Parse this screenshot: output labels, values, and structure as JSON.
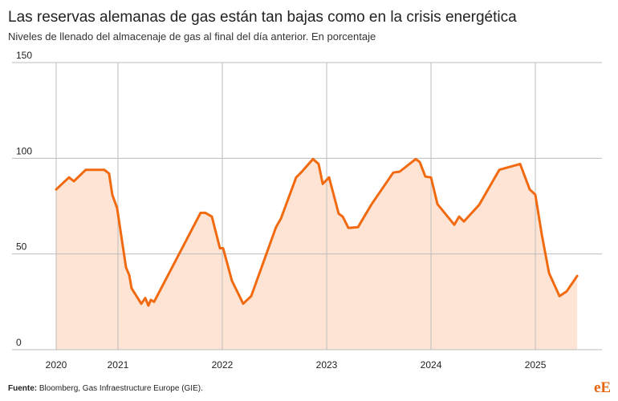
{
  "chart_data": {
    "type": "area",
    "title": "Las reservas alemanas de gas están tan bajas como en la crisis energética",
    "subtitle": "Niveles de llenado del almacenaje de gas al final del día anterior. En porcentaje",
    "source_label": "Fuente:",
    "source": "Bloomberg, Gas Infraestructure Europe (GIE).",
    "logo": "eE",
    "color": "#f26a10",
    "fill": "#fde4d4",
    "grid": true,
    "x": [
      2020.408,
      2020.531,
      2020.577,
      2020.692,
      2020.869,
      2020.915,
      2020.946,
      2020.992,
      2021.077,
      2021.108,
      2021.131,
      2021.223,
      2021.262,
      2021.292,
      2021.315,
      2021.346,
      2021.792,
      2021.838,
      2021.9,
      2021.977,
      2022.008,
      2022.092,
      2022.2,
      2022.277,
      2022.515,
      2022.562,
      2022.708,
      2022.754,
      2022.869,
      2022.923,
      2022.962,
      2023.023,
      2023.115,
      2023.154,
      2023.208,
      2023.3,
      2023.431,
      2023.638,
      2023.7,
      2023.854,
      2023.892,
      2023.946,
      2024.0,
      2024.062,
      2024.223,
      2024.269,
      2024.315,
      2024.462,
      2024.654,
      2024.854,
      2024.946,
      2025.0,
      2025.062,
      2025.131,
      2025.231,
      2025.3,
      2025.4
    ],
    "values": [
      83.7,
      90,
      88,
      94,
      94,
      92,
      81,
      74,
      43,
      39,
      32,
      24,
      27,
      23,
      26,
      25,
      71.5,
      71.5,
      69.5,
      53,
      53,
      36,
      24,
      28,
      64,
      68.6,
      90,
      92.5,
      99.6,
      97,
      86.6,
      90,
      71,
      69.5,
      63.6,
      64,
      76,
      92.5,
      93,
      99.6,
      98,
      90.4,
      90,
      76,
      65.3,
      69.5,
      67,
      75.7,
      94,
      97,
      83.7,
      81,
      60,
      40,
      28,
      30.5,
      38.5
    ],
    "xlim": [
      2019.985,
      2025.638
    ],
    "xticks": [
      {
        "value": 2020.408,
        "label": "2020"
      },
      2021,
      2022,
      2023,
      2024,
      2025
    ],
    "ylim": [
      0,
      150
    ],
    "yticks": [
      0,
      50,
      100,
      150
    ]
  }
}
